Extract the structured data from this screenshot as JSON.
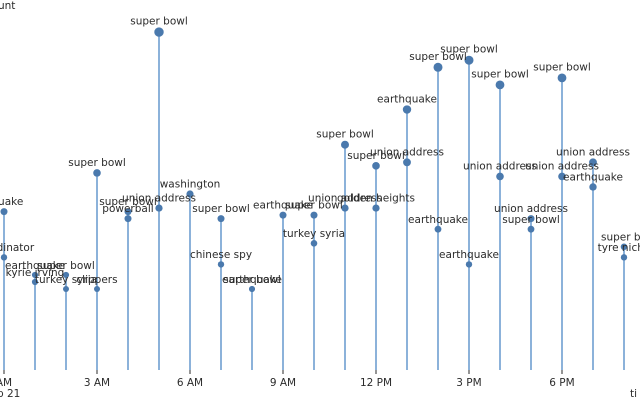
{
  "chart_data": {
    "type": "scatter",
    "title": "",
    "ylabel": "unt",
    "xlabel": "ti",
    "x_tick_labels": [
      "AM",
      "3 AM",
      "6 AM",
      "9 AM",
      "12 PM",
      "3 PM",
      "6 PM"
    ],
    "x_tick_sublabel": "b 21",
    "x_unit": "hour",
    "xlim": [
      0,
      20
    ],
    "y_unit": "count (relative)",
    "ylim": [
      0,
      100
    ],
    "points": [
      {
        "x": 0,
        "y": 45,
        "label": "hquake"
      },
      {
        "x": 0,
        "y": 32,
        "label": "coordinator"
      },
      {
        "x": 1,
        "y": 27,
        "label": "earthquake"
      },
      {
        "x": 1,
        "y": 25,
        "label": "kyrie irving"
      },
      {
        "x": 2,
        "y": 27,
        "label": "super bowl"
      },
      {
        "x": 2,
        "y": 23,
        "label": "turkey syria"
      },
      {
        "x": 3,
        "y": 56,
        "label": "super bowl"
      },
      {
        "x": 3,
        "y": 23,
        "label": "clippers"
      },
      {
        "x": 4,
        "y": 43,
        "label": "powerball"
      },
      {
        "x": 4,
        "y": 45,
        "label": "super bowl"
      },
      {
        "x": 5,
        "y": 96,
        "label": "super bowl"
      },
      {
        "x": 5,
        "y": 46,
        "label": "union address"
      },
      {
        "x": 6,
        "y": 50,
        "label": "washington"
      },
      {
        "x": 7,
        "y": 43,
        "label": "super bowl"
      },
      {
        "x": 7,
        "y": 30,
        "label": "chinese spy"
      },
      {
        "x": 8,
        "y": 23,
        "label": "earthquake"
      },
      {
        "x": 8,
        "y": 23,
        "label": "super bowl"
      },
      {
        "x": 9,
        "y": 44,
        "label": "earthquake"
      },
      {
        "x": 10,
        "y": 44,
        "label": "super bowl"
      },
      {
        "x": 10,
        "y": 36,
        "label": "turkey syria"
      },
      {
        "x": 11,
        "y": 64,
        "label": "super bowl"
      },
      {
        "x": 11,
        "y": 46,
        "label": "union address"
      },
      {
        "x": 12,
        "y": 58,
        "label": "super bowl"
      },
      {
        "x": 12,
        "y": 46,
        "label": "golden heights"
      },
      {
        "x": 13,
        "y": 74,
        "label": "earthquake"
      },
      {
        "x": 13,
        "y": 59,
        "label": "union address"
      },
      {
        "x": 14,
        "y": 86,
        "label": "super bowl"
      },
      {
        "x": 14,
        "y": 40,
        "label": "earthquake"
      },
      {
        "x": 15,
        "y": 88,
        "label": "super bowl"
      },
      {
        "x": 15,
        "y": 30,
        "label": "earthquake"
      },
      {
        "x": 16,
        "y": 81,
        "label": "super bowl"
      },
      {
        "x": 16,
        "y": 55,
        "label": "union address"
      },
      {
        "x": 17,
        "y": 43,
        "label": "union address"
      },
      {
        "x": 17,
        "y": 40,
        "label": "super bowl"
      },
      {
        "x": 18,
        "y": 83,
        "label": "super bowl"
      },
      {
        "x": 18,
        "y": 55,
        "label": "union address"
      },
      {
        "x": 19,
        "y": 59,
        "label": "union address"
      },
      {
        "x": 19,
        "y": 52,
        "label": "earthquake"
      },
      {
        "x": 20,
        "y": 35,
        "label": "super bo"
      },
      {
        "x": 20,
        "y": 32,
        "label": "tyre niche"
      }
    ]
  }
}
